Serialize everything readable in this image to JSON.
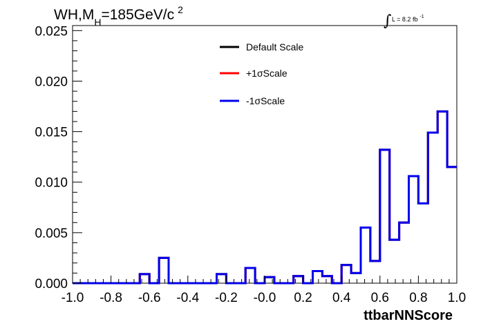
{
  "chart_data": {
    "type": "line",
    "title_parts": {
      "main": "WH,M",
      "sub": "H",
      "rest": "=185GeV/c",
      "sup": "2"
    },
    "lumi": {
      "integral": "∫",
      "text": "L = 8.2 fb",
      "sup": "-1"
    },
    "xlabel": "ttbarNNScore",
    "ylabel": "",
    "xlim": [
      -1.0,
      1.0
    ],
    "ylim": [
      0.0,
      0.0255
    ],
    "x_tick_labels": [
      "-1.0",
      "-0.8",
      "-0.6",
      "-0.4",
      "-0.2",
      "-0.0",
      "0.2",
      "0.4",
      "0.6",
      "0.8",
      "1.0"
    ],
    "y_tick_labels": [
      "0.000",
      "0.005",
      "0.010",
      "0.015",
      "0.020",
      "0.025"
    ],
    "legend_position": "top-center",
    "grid": false,
    "bin_edges": [
      -1.0,
      -0.95,
      -0.9,
      -0.85,
      -0.8,
      -0.75,
      -0.7,
      -0.65,
      -0.6,
      -0.55,
      -0.5,
      -0.45,
      -0.4,
      -0.35,
      -0.3,
      -0.25,
      -0.2,
      -0.15,
      -0.1,
      -0.05,
      0.0,
      0.05,
      0.1,
      0.15,
      0.2,
      0.25,
      0.3,
      0.35,
      0.4,
      0.45,
      0.5,
      0.55,
      0.6,
      0.65,
      0.7,
      0.75,
      0.8,
      0.85,
      0.9,
      0.95,
      1.0
    ],
    "series": [
      {
        "name": "Default Scale",
        "color": "#000000",
        "values": [
          0,
          0,
          0,
          0,
          0,
          0,
          0,
          0.0009,
          0,
          0.0025,
          0,
          0,
          0,
          0,
          0,
          0.0009,
          0,
          0,
          0.0015,
          0,
          0.0006,
          0,
          0,
          0.0007,
          0,
          0.0012,
          0.0007,
          0,
          0.0018,
          0.001,
          0.0055,
          0.0022,
          0.0132,
          0.0043,
          0.006,
          0.0106,
          0.0079,
          0.0149,
          0.017,
          0.0115
        ]
      },
      {
        "name": "+1σScale",
        "color": "#ff0000",
        "values": [
          0,
          0,
          0,
          0,
          0,
          0,
          0,
          0.0009,
          0,
          0.0025,
          0,
          0,
          0,
          0,
          0,
          0.0009,
          0,
          0,
          0.0015,
          0,
          0.0006,
          0,
          0,
          0.0007,
          0,
          0.0012,
          0.0007,
          0,
          0.0018,
          0.001,
          0.0055,
          0.0022,
          0.0132,
          0.0043,
          0.006,
          0.0106,
          0.0079,
          0.0149,
          0.017,
          0.0115
        ]
      },
      {
        "name": "-1σScale",
        "color": "#0000ee",
        "values": [
          0,
          0,
          0,
          0,
          0,
          0,
          0,
          0.0009,
          0,
          0.0025,
          0,
          0,
          0,
          0,
          0,
          0.0009,
          0,
          0,
          0.0015,
          0,
          0.0006,
          0,
          0,
          0.0007,
          0,
          0.0012,
          0.0007,
          0,
          0.0018,
          0.001,
          0.0055,
          0.0022,
          0.0132,
          0.0043,
          0.006,
          0.0106,
          0.0079,
          0.0149,
          0.017,
          0.0115
        ]
      }
    ]
  }
}
